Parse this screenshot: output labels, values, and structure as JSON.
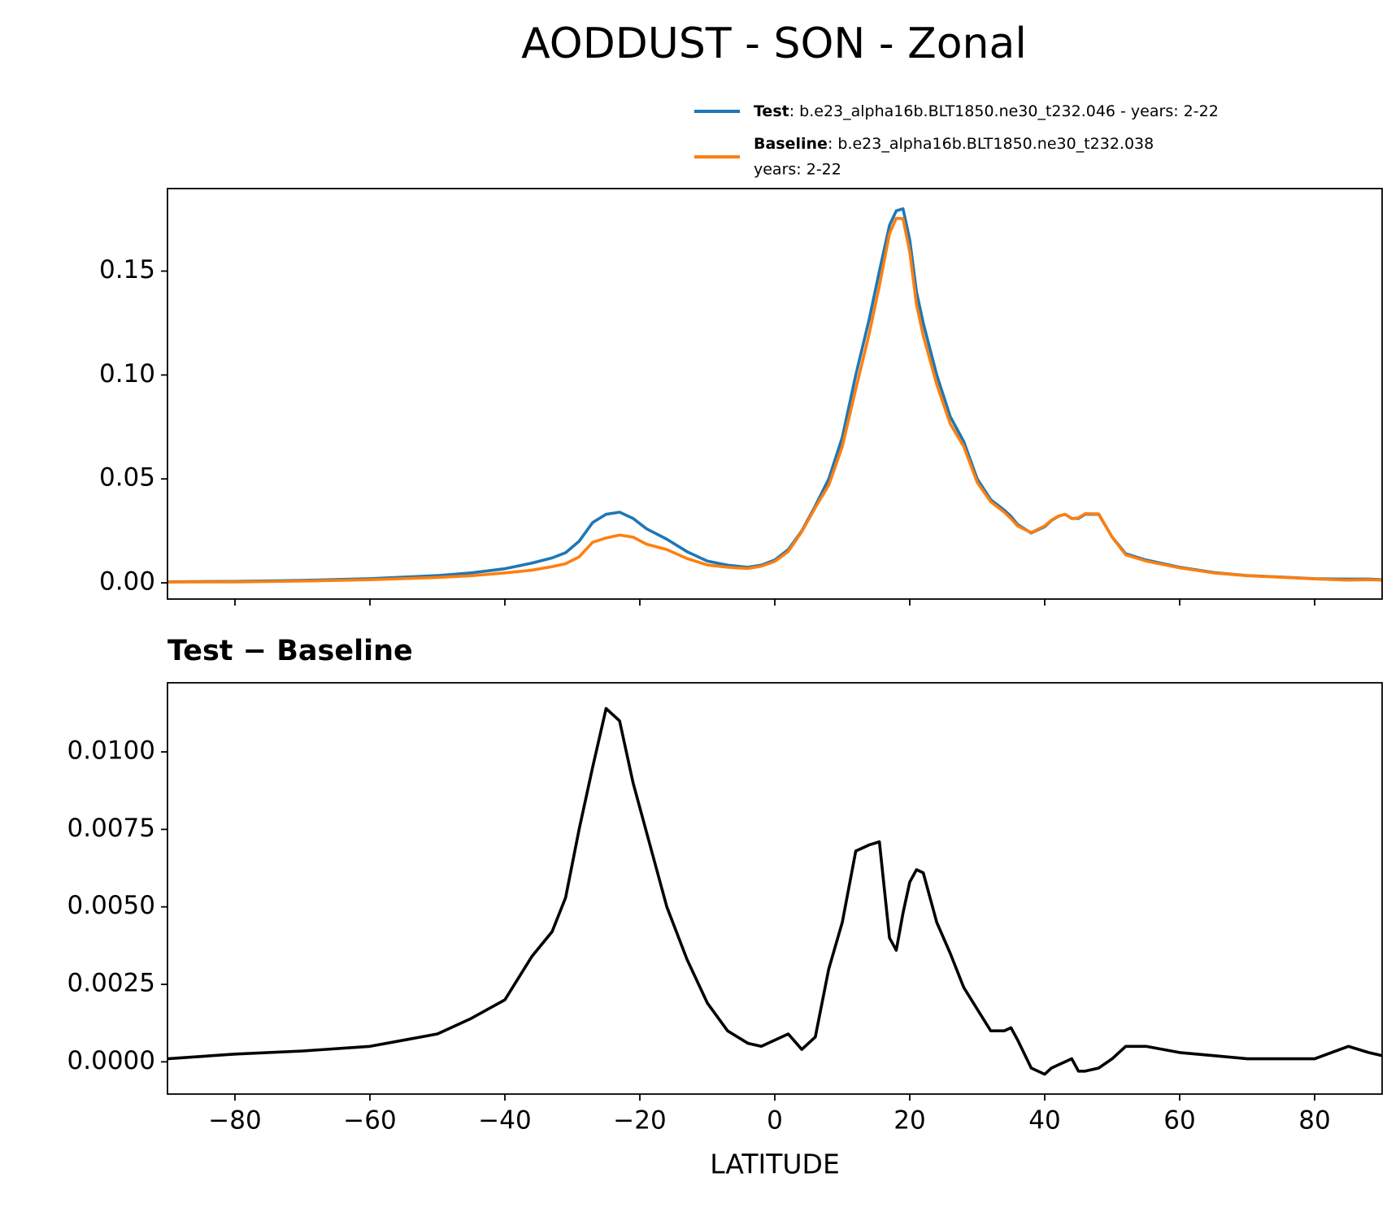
{
  "chart_data": [
    {
      "type": "line",
      "title": "AODDUST - SON - Zonal",
      "x": [
        -90,
        -80,
        -70,
        -60,
        -50,
        -45,
        -40,
        -36,
        -33,
        -31,
        -29,
        -27,
        -25,
        -23,
        -21,
        -19,
        -16,
        -13,
        -10,
        -7,
        -4,
        -2,
        0,
        2,
        4,
        6,
        8,
        10,
        12,
        14,
        15.5,
        17,
        18,
        19,
        20,
        21,
        22,
        24,
        26,
        28,
        30,
        32,
        34,
        35,
        36,
        38,
        40,
        41,
        42,
        43,
        44,
        45,
        46,
        48,
        50,
        52,
        55,
        60,
        65,
        70,
        75,
        80,
        85,
        88,
        90
      ],
      "series": [
        {
          "name": "Test",
          "description": [
            ": b.e23_alpha16b.BLT1850.ne30_t232.046 - years: 2-22"
          ],
          "color": "#1f77b4",
          "values": [
            0.0005,
            0.0007,
            0.0012,
            0.002,
            0.0035,
            0.0048,
            0.0068,
            0.0095,
            0.012,
            0.0145,
            0.02,
            0.029,
            0.033,
            0.034,
            0.031,
            0.026,
            0.021,
            0.015,
            0.0105,
            0.0085,
            0.0075,
            0.0085,
            0.011,
            0.016,
            0.025,
            0.037,
            0.05,
            0.07,
            0.1,
            0.127,
            0.15,
            0.172,
            0.179,
            0.18,
            0.165,
            0.14,
            0.125,
            0.1,
            0.08,
            0.068,
            0.05,
            0.04,
            0.035,
            0.032,
            0.028,
            0.024,
            0.027,
            0.03,
            0.032,
            0.033,
            0.031,
            0.031,
            0.033,
            0.033,
            0.022,
            0.014,
            0.011,
            0.0075,
            0.005,
            0.0035,
            0.0028,
            0.002,
            0.0018,
            0.0018,
            0.0015
          ]
        },
        {
          "name": "Baseline",
          "description": [
            ": b.e23_alpha16b.BLT1850.ne30_t232.038",
            "years: 2-22"
          ],
          "color": "#ff7f0e",
          "values": [
            0.0004,
            0.00045,
            0.00085,
            0.0015,
            0.0026,
            0.0034,
            0.0048,
            0.0061,
            0.0078,
            0.0092,
            0.0125,
            0.0195,
            0.0216,
            0.023,
            0.022,
            0.0186,
            0.016,
            0.0117,
            0.0086,
            0.0075,
            0.0069,
            0.008,
            0.0103,
            0.0151,
            0.0246,
            0.0362,
            0.047,
            0.0655,
            0.0932,
            0.12,
            0.1429,
            0.168,
            0.1754,
            0.1752,
            0.1592,
            0.1338,
            0.1189,
            0.0955,
            0.0765,
            0.0656,
            0.0483,
            0.039,
            0.034,
            0.0309,
            0.0273,
            0.0242,
            0.0274,
            0.0302,
            0.0321,
            0.033,
            0.0309,
            0.0313,
            0.0333,
            0.0332,
            0.0219,
            0.0135,
            0.0105,
            0.0072,
            0.0048,
            0.0034,
            0.0027,
            0.0019,
            0.0013,
            0.0015,
            0.0013
          ]
        }
      ],
      "xlim": [
        -90,
        90
      ],
      "ylim": [
        -0.0078,
        0.1897
      ],
      "yticks": [
        {
          "value": 0,
          "label": "0.00"
        },
        0.05,
        {
          "value": 0.1,
          "label": "0.10"
        },
        0.15
      ]
    },
    {
      "type": "line",
      "title": "Test − Baseline",
      "xlabel": "LATITUDE",
      "x": [
        -90,
        -80,
        -70,
        -60,
        -50,
        -45,
        -40,
        -36,
        -33,
        -31,
        -29,
        -27,
        -25,
        -23,
        -21,
        -19,
        -16,
        -13,
        -10,
        -7,
        -4,
        -2,
        0,
        2,
        4,
        6,
        8,
        10,
        12,
        14,
        15.5,
        17,
        18,
        19,
        20,
        21,
        22,
        24,
        26,
        28,
        30,
        32,
        34,
        35,
        36,
        38,
        40,
        41,
        42,
        43,
        44,
        45,
        46,
        48,
        50,
        52,
        55,
        60,
        65,
        70,
        75,
        80,
        85,
        88,
        90
      ],
      "values": [
        0.0001,
        0.00025,
        0.00035,
        0.0005,
        0.0009,
        0.0014,
        0.002,
        0.0034,
        0.0042,
        0.0053,
        0.0075,
        0.0095,
        0.0114,
        0.011,
        0.009,
        0.0074,
        0.005,
        0.0033,
        0.0019,
        0.001,
        0.0006,
        0.0005,
        0.0007,
        0.0009,
        0.0004,
        0.0008,
        0.003,
        0.0045,
        0.0068,
        0.007,
        0.0071,
        0.004,
        0.0036,
        0.0048,
        0.0058,
        0.0062,
        0.0061,
        0.0045,
        0.0035,
        0.0024,
        0.0017,
        0.001,
        0.001,
        0.0011,
        0.0007,
        -0.0002,
        -0.0004,
        -0.0002,
        -0.0001,
        0,
        0.0001,
        -0.0003,
        -0.0003,
        -0.0002,
        0.0001,
        0.0005,
        0.0005,
        0.0003,
        0.0002,
        0.0001,
        0.0001,
        0.0001,
        0.0005,
        0.0003,
        0.0002
      ],
      "color": "#000000",
      "xlim": [
        -90,
        90
      ],
      "ylim": [
        -0.00104,
        0.01223
      ],
      "xticks": [
        {
          "value": -80,
          "label": "−80"
        },
        {
          "value": -60,
          "label": "−60"
        },
        {
          "value": -40,
          "label": "−40"
        },
        {
          "value": -20,
          "label": "−20"
        },
        0,
        20,
        40,
        60,
        80
      ],
      "yticks": [
        {
          "value": 0,
          "label": "0.0000"
        },
        0.0025,
        {
          "value": 0.005,
          "label": "0.0050"
        },
        0.0075,
        {
          "value": 0.01,
          "label": "0.0100"
        }
      ]
    }
  ]
}
